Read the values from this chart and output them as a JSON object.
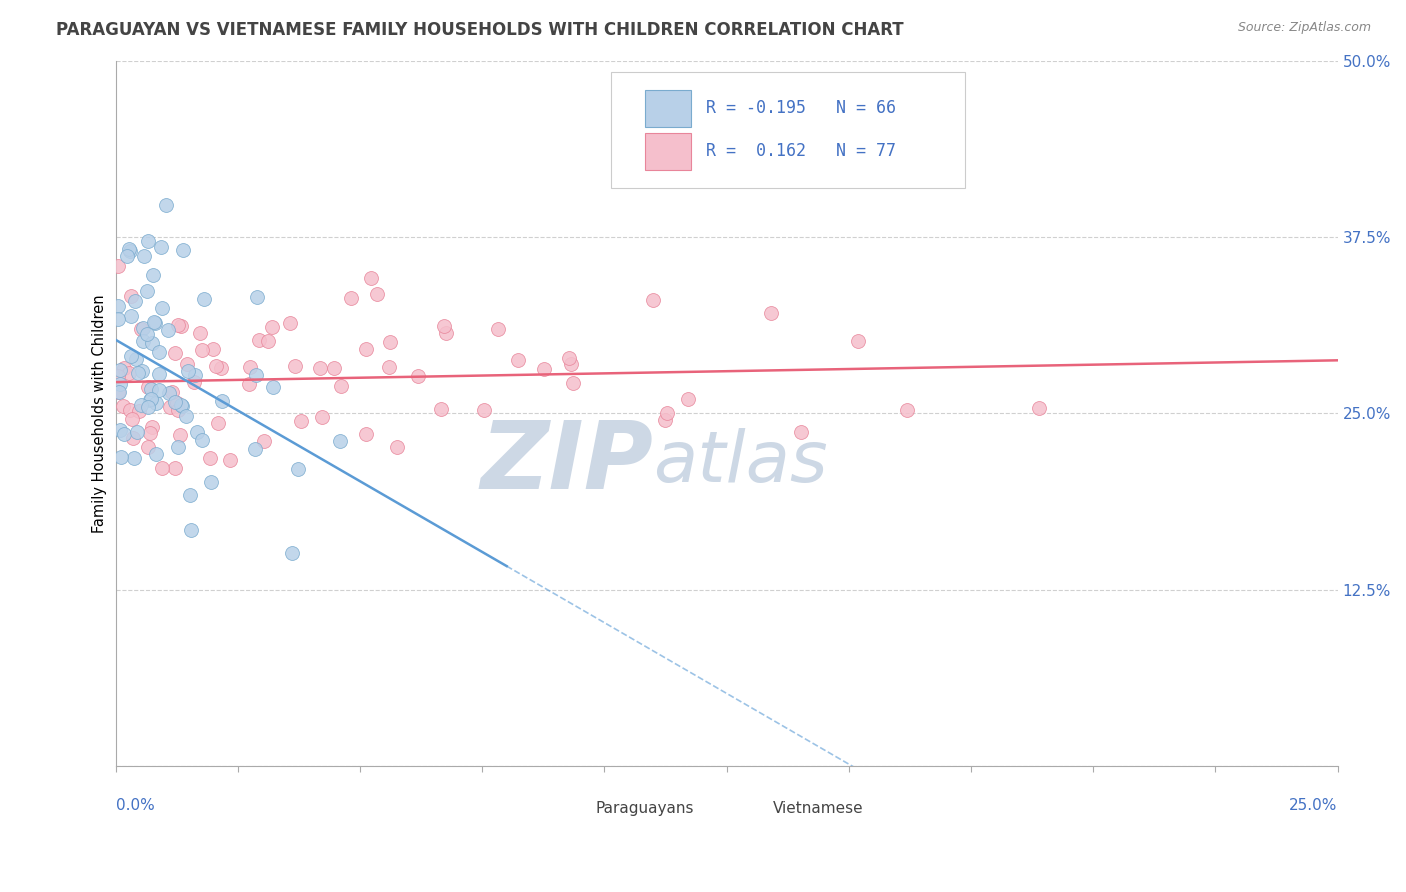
{
  "title": "PARAGUAYAN VS VIETNAMESE FAMILY HOUSEHOLDS WITH CHILDREN CORRELATION CHART",
  "source_text": "Source: ZipAtlas.com",
  "ylabel_axis": "Family Households with Children",
  "legend_line1": "R = -0.195   N = 66",
  "legend_line2": "R =  0.162   N = 77",
  "paraguayan_color": "#b8d0e8",
  "paraguayan_edge": "#7aabce",
  "vietnamese_color": "#f5bfcc",
  "vietnamese_edge": "#e8859a",
  "trend_par_color": "#5b9bd5",
  "trend_vie_color": "#e8637a",
  "watermark_zip": "ZIP",
  "watermark_atlas": "atlas",
  "watermark_color": "#cdd8e5",
  "xmin": 0.0,
  "xmax": 25.0,
  "ymin": 0.0,
  "ymax": 50.0,
  "yticks": [
    0.0,
    12.5,
    25.0,
    37.5,
    50.0
  ],
  "ytick_labels": [
    "",
    "12.5%",
    "25.0%",
    "37.5%",
    "50.0%"
  ],
  "R_par": -0.195,
  "N_par": 66,
  "R_vie": 0.162,
  "N_vie": 77,
  "title_color": "#444444",
  "axis_label_color": "#4472c4",
  "legend_text_color": "#4472c4",
  "bottom_legend_par": "Paraguayans",
  "bottom_legend_vie": "Vietnamese",
  "grid_color": "#d0d0d0",
  "spine_color": "#aaaaaa",
  "par_x_seed": 7,
  "vie_x_seed": 13,
  "par_y_mean": 27.5,
  "par_y_std": 5.5,
  "vie_y_mean": 28.0,
  "vie_y_std": 4.5,
  "par_x_scale": 1.2,
  "vie_x_scale": 4.5
}
